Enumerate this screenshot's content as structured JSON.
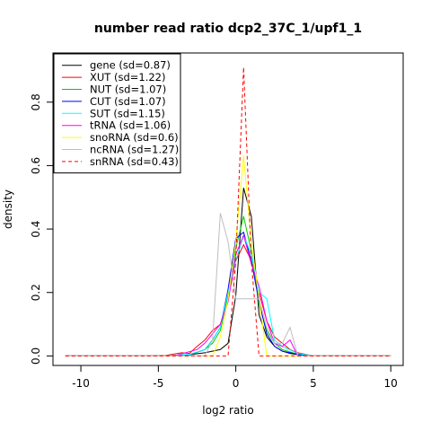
{
  "chart_data": {
    "type": "line",
    "title": "number read ratio dcp2_37C_1/upf1_1",
    "xlabel": "log2 ratio",
    "ylabel": "density",
    "xlim": [
      -11.8,
      10.8
    ],
    "ylim": [
      -0.03,
      0.955
    ],
    "x_ticks": [
      -10,
      -5,
      0,
      5,
      10
    ],
    "y_ticks": [
      0.0,
      0.2,
      0.4,
      0.6,
      0.8
    ],
    "x_tick_labels": [
      "-10",
      "-5",
      "0",
      "5",
      "10"
    ],
    "y_tick_labels": [
      "0.0",
      "0.2",
      "0.4",
      "0.6",
      "0.8"
    ],
    "legend_position": "top-left",
    "series": [
      {
        "name": "gene (sd=0.87)",
        "color": "#000000",
        "dash": false,
        "x": [
          -11,
          -5,
          -4,
          -3,
          -2,
          -1,
          -0.5,
          0,
          0.5,
          1,
          1.5,
          2,
          2.5,
          3,
          3.5,
          4,
          5,
          10
        ],
        "y": [
          0,
          0,
          0.002,
          0.004,
          0.01,
          0.02,
          0.04,
          0.19,
          0.53,
          0.44,
          0.13,
          0.06,
          0.03,
          0.015,
          0.008,
          0.004,
          0,
          0
        ]
      },
      {
        "name": "XUT (sd=1.22)",
        "color": "#ff0000",
        "dash": false,
        "x": [
          -11,
          -6,
          -4.5,
          -3.5,
          -3,
          -2.5,
          -2,
          -1.5,
          -1,
          -0.5,
          0,
          0.5,
          1,
          1.5,
          2,
          2.5,
          3,
          3.5,
          4,
          5,
          10
        ],
        "y": [
          0,
          0,
          0.002,
          0.01,
          0.008,
          0.03,
          0.05,
          0.08,
          0.1,
          0.18,
          0.3,
          0.35,
          0.3,
          0.2,
          0.11,
          0.06,
          0.04,
          0.02,
          0.01,
          0,
          0
        ]
      },
      {
        "name": "NUT (sd=1.07)",
        "color": "#00cd00",
        "dash": false,
        "x": [
          -11,
          -5,
          -4,
          -3,
          -2,
          -1.5,
          -1,
          -0.5,
          0,
          0.5,
          1,
          1.5,
          2,
          2.5,
          3,
          4,
          5,
          10
        ],
        "y": [
          0,
          0,
          0.001,
          0.003,
          0.02,
          0.04,
          0.08,
          0.19,
          0.34,
          0.44,
          0.33,
          0.16,
          0.08,
          0.04,
          0.02,
          0.005,
          0,
          0
        ]
      },
      {
        "name": "CUT (sd=1.07)",
        "color": "#0000ff",
        "dash": false,
        "x": [
          -11,
          -5,
          -4,
          -3,
          -2,
          -1.5,
          -1,
          -0.5,
          0,
          0.5,
          1,
          1.5,
          2,
          2.5,
          3,
          4,
          5,
          10
        ],
        "y": [
          0,
          0,
          0.001,
          0.004,
          0.02,
          0.05,
          0.09,
          0.21,
          0.37,
          0.39,
          0.3,
          0.17,
          0.07,
          0.03,
          0.015,
          0.005,
          0,
          0
        ]
      },
      {
        "name": "SUT (sd=1.15)",
        "color": "#00ffff",
        "dash": false,
        "x": [
          -11,
          -5,
          -4,
          -3,
          -2,
          -1.5,
          -1,
          -0.5,
          0,
          0.5,
          1,
          1.5,
          2,
          2.5,
          3,
          4,
          5,
          10
        ],
        "y": [
          0,
          0,
          0.002,
          0.005,
          0.02,
          0.05,
          0.09,
          0.2,
          0.3,
          0.38,
          0.32,
          0.2,
          0.18,
          0.05,
          0.03,
          0.008,
          0,
          0
        ]
      },
      {
        "name": "tRNA (sd=1.06)",
        "color": "#ff00ff",
        "dash": false,
        "x": [
          -11,
          -4,
          -2.5,
          -2,
          -1.5,
          -1,
          -0.5,
          0,
          0.5,
          1,
          1.5,
          2,
          2.5,
          3,
          3.5,
          4,
          10
        ],
        "y": [
          0,
          0,
          0.02,
          0.04,
          0.07,
          0.1,
          0.17,
          0.32,
          0.38,
          0.29,
          0.22,
          0.11,
          0.04,
          0.03,
          0.05,
          0,
          0
        ]
      },
      {
        "name": "snoRNA (sd=0.6)",
        "color": "#ffff00",
        "dash": false,
        "x": [
          -11,
          -1.5,
          -1,
          -0.5,
          0,
          0.5,
          1,
          1.5,
          2,
          2.5,
          10
        ],
        "y": [
          0,
          0,
          0.06,
          0.18,
          0.36,
          0.63,
          0.36,
          0.18,
          0,
          0,
          0
        ]
      },
      {
        "name": "ncRNA (sd=1.27)",
        "color": "#bebebe",
        "dash": false,
        "x": [
          -11,
          -2,
          -1.5,
          -1,
          -0.5,
          0,
          0.5,
          1,
          1.5,
          2,
          2.5,
          3,
          3.5,
          4,
          10
        ],
        "y": [
          0,
          0,
          0.05,
          0.45,
          0.36,
          0.18,
          0.18,
          0.18,
          0.18,
          0.09,
          0.04,
          0.04,
          0.09,
          0,
          0
        ]
      },
      {
        "name": "snRNA (sd=0.43)",
        "color": "#ff0000",
        "dash": true,
        "x": [
          -11,
          -1,
          -0.5,
          0,
          0.5,
          1,
          1.5,
          10
        ],
        "y": [
          0,
          0,
          0,
          0.3,
          0.91,
          0.3,
          0,
          0
        ]
      }
    ]
  }
}
